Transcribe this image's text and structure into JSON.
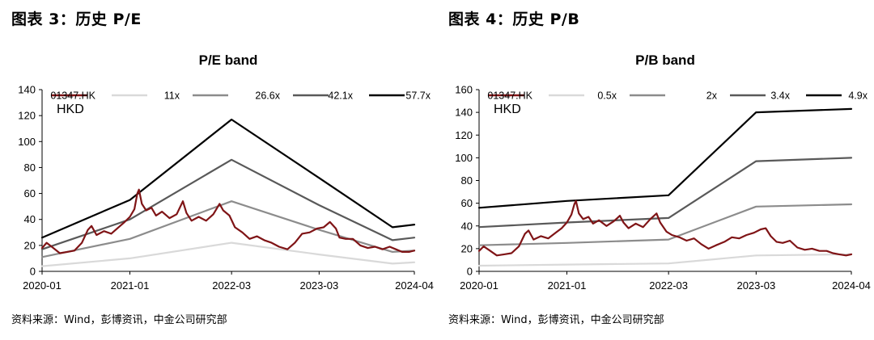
{
  "panels": [
    {
      "fig_title": "图表 3：历史 P/E",
      "source": "资料来源：Wind，彭博资讯，中金公司研究部"
    },
    {
      "fig_title": "图表 4：历史 P/B",
      "source": "资料来源：Wind，彭博资讯，中金公司研究部"
    }
  ],
  "chart_data": [
    {
      "type": "line",
      "title": "P/E band",
      "unit_label": "HKD",
      "xlabel": "",
      "ylabel": "",
      "ylim": [
        0,
        140
      ],
      "yticks": [
        0,
        20,
        40,
        60,
        80,
        100,
        120,
        140
      ],
      "x_range": [
        "2020-01-01",
        "2024-04-01"
      ],
      "xticks": [
        {
          "date": "2020-01-01",
          "label": "2020-01"
        },
        {
          "date": "2021-01-01",
          "label": "2021-01"
        },
        {
          "date": "2022-03-01",
          "label": "2022-03"
        },
        {
          "date": "2023-03-01",
          "label": "2023-03"
        },
        {
          "date": "2024-04-01",
          "label": "2024-04"
        }
      ],
      "grid": false,
      "legend_position": "top",
      "series": [
        {
          "name": "01347.HK",
          "color": "#7f1416",
          "width": 2.2,
          "points": [
            [
              "2020-01-01",
              18
            ],
            [
              "2020-01-20",
              22
            ],
            [
              "2020-02-10",
              19
            ],
            [
              "2020-03-15",
              14
            ],
            [
              "2020-04-15",
              15
            ],
            [
              "2020-05-15",
              16
            ],
            [
              "2020-06-15",
              22
            ],
            [
              "2020-07-10",
              32
            ],
            [
              "2020-07-25",
              35
            ],
            [
              "2020-08-15",
              28
            ],
            [
              "2020-09-15",
              31
            ],
            [
              "2020-10-15",
              29
            ],
            [
              "2020-11-15",
              34
            ],
            [
              "2020-12-10",
              38
            ],
            [
              "2021-01-01",
              42
            ],
            [
              "2021-01-20",
              48
            ],
            [
              "2021-02-01",
              60
            ],
            [
              "2021-02-08",
              63
            ],
            [
              "2021-02-20",
              52
            ],
            [
              "2021-03-10",
              47
            ],
            [
              "2021-04-01",
              49
            ],
            [
              "2021-04-20",
              43
            ],
            [
              "2021-05-15",
              46
            ],
            [
              "2021-06-15",
              41
            ],
            [
              "2021-07-15",
              44
            ],
            [
              "2021-08-10",
              54
            ],
            [
              "2021-08-25",
              45
            ],
            [
              "2021-09-15",
              39
            ],
            [
              "2021-10-15",
              42
            ],
            [
              "2021-11-15",
              39
            ],
            [
              "2021-12-15",
              44
            ],
            [
              "2022-01-10",
              52
            ],
            [
              "2022-01-25",
              47
            ],
            [
              "2022-02-20",
              43
            ],
            [
              "2022-03-15",
              34
            ],
            [
              "2022-04-15",
              30
            ],
            [
              "2022-05-15",
              25
            ],
            [
              "2022-06-15",
              27
            ],
            [
              "2022-07-15",
              24
            ],
            [
              "2022-08-15",
              22
            ],
            [
              "2022-09-15",
              19
            ],
            [
              "2022-10-20",
              17
            ],
            [
              "2022-11-20",
              22
            ],
            [
              "2022-12-20",
              29
            ],
            [
              "2023-01-20",
              30
            ],
            [
              "2023-02-20",
              33
            ],
            [
              "2023-03-20",
              34
            ],
            [
              "2023-04-15",
              38
            ],
            [
              "2023-05-10",
              33
            ],
            [
              "2023-05-25",
              26
            ],
            [
              "2023-06-20",
              25
            ],
            [
              "2023-07-20",
              25
            ],
            [
              "2023-08-20",
              20
            ],
            [
              "2023-09-20",
              18
            ],
            [
              "2023-10-20",
              19
            ],
            [
              "2023-11-20",
              17
            ],
            [
              "2023-12-20",
              19
            ],
            [
              "2024-01-15",
              17
            ],
            [
              "2024-02-10",
              15
            ],
            [
              "2024-03-10",
              15
            ],
            [
              "2024-04-01",
              16
            ]
          ]
        },
        {
          "name": "11x",
          "color": "#d9d9d9",
          "width": 2.2,
          "points": [
            [
              "2020-01-01",
              4
            ],
            [
              "2021-01-01",
              10
            ],
            [
              "2022-03-01",
              22
            ],
            [
              "2023-03-01",
              13
            ],
            [
              "2024-01-01",
              6
            ],
            [
              "2024-04-01",
              7
            ]
          ]
        },
        {
          "name": "26.6x",
          "color": "#8c8c8c",
          "width": 2.2,
          "points": [
            [
              "2020-01-01",
              11
            ],
            [
              "2021-01-01",
              25
            ],
            [
              "2022-03-01",
              54
            ],
            [
              "2023-03-01",
              32
            ],
            [
              "2024-01-01",
              15
            ],
            [
              "2024-04-01",
              16
            ]
          ]
        },
        {
          "name": "42.1x",
          "color": "#595959",
          "width": 2.2,
          "points": [
            [
              "2020-01-01",
              17
            ],
            [
              "2021-01-01",
              40
            ],
            [
              "2022-03-01",
              86
            ],
            [
              "2023-03-01",
              51
            ],
            [
              "2024-01-01",
              24
            ],
            [
              "2024-04-01",
              26
            ]
          ]
        },
        {
          "name": "57.7x",
          "color": "#000000",
          "width": 2.2,
          "points": [
            [
              "2020-01-01",
              26
            ],
            [
              "2021-01-01",
              55
            ],
            [
              "2022-03-01",
              117
            ],
            [
              "2023-03-01",
              72
            ],
            [
              "2024-01-01",
              34
            ],
            [
              "2024-04-01",
              36
            ]
          ]
        }
      ]
    },
    {
      "type": "line",
      "title": "P/B band",
      "unit_label": "HKD",
      "xlabel": "",
      "ylabel": "",
      "ylim": [
        0,
        160
      ],
      "yticks": [
        0,
        20,
        40,
        60,
        80,
        100,
        120,
        140,
        160
      ],
      "x_range": [
        "2020-01-01",
        "2024-04-01"
      ],
      "xticks": [
        {
          "date": "2020-01-01",
          "label": "2020-01"
        },
        {
          "date": "2021-01-01",
          "label": "2021-01"
        },
        {
          "date": "2022-03-01",
          "label": "2022-03"
        },
        {
          "date": "2023-03-01",
          "label": "2023-03"
        },
        {
          "date": "2024-04-01",
          "label": "2024-04"
        }
      ],
      "grid": false,
      "legend_position": "top",
      "series": [
        {
          "name": "01347.HK",
          "color": "#7f1416",
          "width": 2.2,
          "points": [
            [
              "2020-01-01",
              18
            ],
            [
              "2020-01-20",
              22
            ],
            [
              "2020-02-10",
              19
            ],
            [
              "2020-03-15",
              14
            ],
            [
              "2020-04-15",
              15
            ],
            [
              "2020-05-15",
              16
            ],
            [
              "2020-06-15",
              22
            ],
            [
              "2020-07-10",
              33
            ],
            [
              "2020-07-25",
              36
            ],
            [
              "2020-08-15",
              28
            ],
            [
              "2020-09-15",
              31
            ],
            [
              "2020-10-15",
              29
            ],
            [
              "2020-11-15",
              34
            ],
            [
              "2020-12-10",
              38
            ],
            [
              "2021-01-01",
              43
            ],
            [
              "2021-01-20",
              50
            ],
            [
              "2021-02-01",
              59
            ],
            [
              "2021-02-08",
              62
            ],
            [
              "2021-02-20",
              51
            ],
            [
              "2021-03-10",
              46
            ],
            [
              "2021-04-01",
              48
            ],
            [
              "2021-04-20",
              42
            ],
            [
              "2021-05-15",
              45
            ],
            [
              "2021-06-15",
              40
            ],
            [
              "2021-07-15",
              44
            ],
            [
              "2021-08-10",
              49
            ],
            [
              "2021-08-25",
              43
            ],
            [
              "2021-09-15",
              38
            ],
            [
              "2021-10-15",
              42
            ],
            [
              "2021-11-15",
              39
            ],
            [
              "2021-12-15",
              46
            ],
            [
              "2022-01-10",
              51
            ],
            [
              "2022-01-25",
              43
            ],
            [
              "2022-02-20",
              35
            ],
            [
              "2022-03-15",
              32
            ],
            [
              "2022-04-15",
              30
            ],
            [
              "2022-05-15",
              27
            ],
            [
              "2022-06-15",
              29
            ],
            [
              "2022-07-15",
              24
            ],
            [
              "2022-08-15",
              20
            ],
            [
              "2022-09-15",
              23
            ],
            [
              "2022-10-20",
              26
            ],
            [
              "2022-11-20",
              30
            ],
            [
              "2022-12-20",
              29
            ],
            [
              "2023-01-20",
              32
            ],
            [
              "2023-02-20",
              34
            ],
            [
              "2023-03-20",
              37
            ],
            [
              "2023-04-10",
              38
            ],
            [
              "2023-05-01",
              31
            ],
            [
              "2023-05-25",
              26
            ],
            [
              "2023-06-20",
              25
            ],
            [
              "2023-07-20",
              27
            ],
            [
              "2023-08-20",
              21
            ],
            [
              "2023-09-20",
              19
            ],
            [
              "2023-10-20",
              20
            ],
            [
              "2023-11-20",
              18
            ],
            [
              "2023-12-20",
              18
            ],
            [
              "2024-01-15",
              16
            ],
            [
              "2024-02-10",
              15
            ],
            [
              "2024-03-10",
              14
            ],
            [
              "2024-04-01",
              15
            ]
          ]
        },
        {
          "name": "0.5x",
          "color": "#d9d9d9",
          "width": 2.2,
          "points": [
            [
              "2020-01-01",
              5
            ],
            [
              "2021-01-01",
              6
            ],
            [
              "2022-03-01",
              7
            ],
            [
              "2023-03-01",
              14
            ],
            [
              "2024-04-01",
              15
            ]
          ]
        },
        {
          "name": "2x",
          "color": "#8c8c8c",
          "width": 2.2,
          "points": [
            [
              "2020-01-01",
              23
            ],
            [
              "2021-01-01",
              25
            ],
            [
              "2022-03-01",
              28
            ],
            [
              "2023-03-01",
              57
            ],
            [
              "2024-04-01",
              59
            ]
          ]
        },
        {
          "name": "3.4x",
          "color": "#595959",
          "width": 2.2,
          "points": [
            [
              "2020-01-01",
              39
            ],
            [
              "2021-01-01",
              43
            ],
            [
              "2022-03-01",
              47
            ],
            [
              "2023-03-01",
              97
            ],
            [
              "2024-04-01",
              100
            ]
          ]
        },
        {
          "name": "4.9x",
          "color": "#000000",
          "width": 2.2,
          "points": [
            [
              "2020-01-01",
              56
            ],
            [
              "2021-01-01",
              62
            ],
            [
              "2022-03-01",
              67
            ],
            [
              "2023-03-01",
              140
            ],
            [
              "2024-04-01",
              143
            ]
          ]
        }
      ]
    }
  ]
}
